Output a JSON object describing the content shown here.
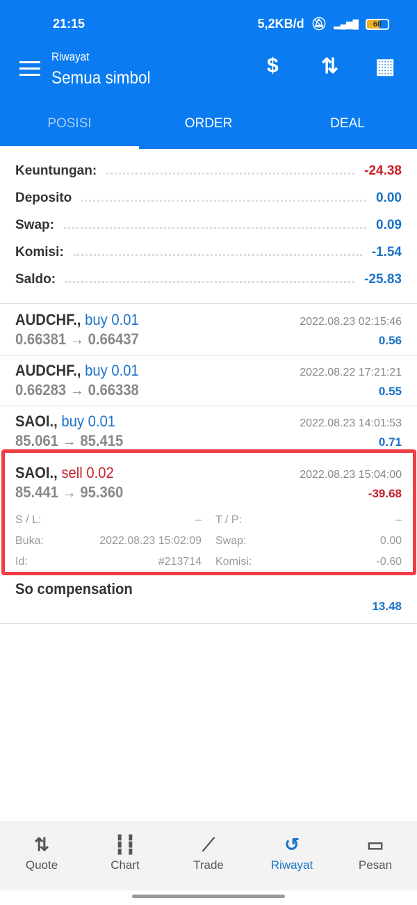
{
  "status_bar": {
    "time": "21:15",
    "speed": "5,2KB/d",
    "network": "4G",
    "battery": "60"
  },
  "header": {
    "subtitle": "Riwayat",
    "title": "Semua simbol"
  },
  "tabs": [
    {
      "label": "POSISI",
      "active": true
    },
    {
      "label": "ORDER"
    },
    {
      "label": "DEAL"
    }
  ],
  "summary": [
    {
      "label": "Keuntungan:",
      "value": "-24.38",
      "color": "red"
    },
    {
      "label": "Deposito",
      "value": "0.00",
      "color": "blue"
    },
    {
      "label": "Swap:",
      "value": "0.09",
      "color": "blue"
    },
    {
      "label": "Komisi:",
      "value": "-1.54",
      "color": "blue"
    },
    {
      "label": "Saldo:",
      "value": "-25.83",
      "color": "blue"
    }
  ],
  "deals": [
    {
      "symbol": "AUDCHF.,",
      "side": "buy 0.01",
      "time": "2022.08.23 02:15:46",
      "prices": "0.66381 → 0.66437",
      "profit": "0.56"
    },
    {
      "symbol": "AUDCHF.,",
      "side": "buy 0.01",
      "time": "2022.08.22 17:21:21",
      "prices": "0.66283 → 0.66338",
      "profit": "0.55"
    },
    {
      "symbol": "SAOI.,",
      "side": "buy 0.01",
      "time": "2022.08.23 14:01:53",
      "prices": "85.061 → 85.415",
      "profit": "0.71"
    },
    {
      "symbol": "SAOI.,",
      "side": "sell 0.02",
      "time": "2022.08.23 15:04:00",
      "prices": "85.441 → 95.360",
      "profit": "-39.68",
      "details": {
        "sl_label": "S / L:",
        "sl": "–",
        "tp_label": "T / P:",
        "tp": "–",
        "open_label": "Buka:",
        "open": "2022.08.23 15:02:09",
        "swap_label": "Swap:",
        "swap": "0.00",
        "id_label": "Id:",
        "id": "#213714",
        "commission_label": "Komisi:",
        "commission": "-0.60"
      }
    },
    {
      "symbol": "So compensation",
      "profit": "13.48"
    }
  ],
  "nav": [
    {
      "label": "Quote",
      "icon": "quote-icon"
    },
    {
      "label": "Chart",
      "icon": "chart-icon"
    },
    {
      "label": "Trade",
      "icon": "trade-icon"
    },
    {
      "label": "Riwayat",
      "icon": "history-icon",
      "active": true
    },
    {
      "label": "Pesan",
      "icon": "messages-icon"
    }
  ],
  "colors": {
    "primary": "#0a7bf0",
    "profit": "#1a73c8",
    "loss": "#c8202a",
    "highlight": "#f03c44"
  }
}
